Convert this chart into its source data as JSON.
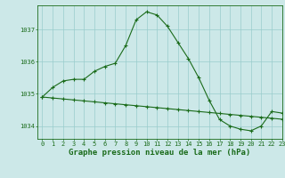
{
  "title": "Graphe pression niveau de la mer (hPa)",
  "line1_x": [
    0,
    1,
    2,
    3,
    4,
    5,
    6,
    7,
    8,
    9,
    10,
    11,
    12,
    13,
    14,
    15,
    16,
    17,
    18,
    19,
    20,
    21,
    22,
    23
  ],
  "line1_y": [
    1034.9,
    1035.2,
    1035.4,
    1035.45,
    1035.45,
    1035.7,
    1035.85,
    1035.95,
    1036.5,
    1037.3,
    1037.55,
    1037.45,
    1037.1,
    1036.6,
    1036.1,
    1035.5,
    1034.8,
    1034.2,
    1034.0,
    1033.9,
    1033.85,
    1034.0,
    1034.45,
    1034.4
  ],
  "line2_x": [
    0,
    1,
    2,
    3,
    4,
    5,
    6,
    7,
    8,
    9,
    10,
    11,
    12,
    13,
    14,
    15,
    16,
    17,
    18,
    19,
    20,
    21,
    22,
    23
  ],
  "line2_y": [
    1034.9,
    1034.87,
    1034.84,
    1034.81,
    1034.78,
    1034.75,
    1034.72,
    1034.69,
    1034.66,
    1034.63,
    1034.6,
    1034.57,
    1034.54,
    1034.51,
    1034.48,
    1034.45,
    1034.42,
    1034.39,
    1034.36,
    1034.33,
    1034.3,
    1034.27,
    1034.24,
    1034.21
  ],
  "line_color": "#1a6b1a",
  "bg_color": "#cce8e8",
  "grid_color": "#99cccc",
  "xlim": [
    -0.5,
    23
  ],
  "ylim": [
    1033.6,
    1037.75
  ],
  "yticks": [
    1034,
    1035,
    1036,
    1037
  ],
  "xticks": [
    0,
    1,
    2,
    3,
    4,
    5,
    6,
    7,
    8,
    9,
    10,
    11,
    12,
    13,
    14,
    15,
    16,
    17,
    18,
    19,
    20,
    21,
    22,
    23
  ],
  "marker": "+",
  "marker_size": 3,
  "line_width": 0.8,
  "title_fontsize": 6.5,
  "tick_fontsize": 5.0,
  "tick_color": "#1a6b1a"
}
